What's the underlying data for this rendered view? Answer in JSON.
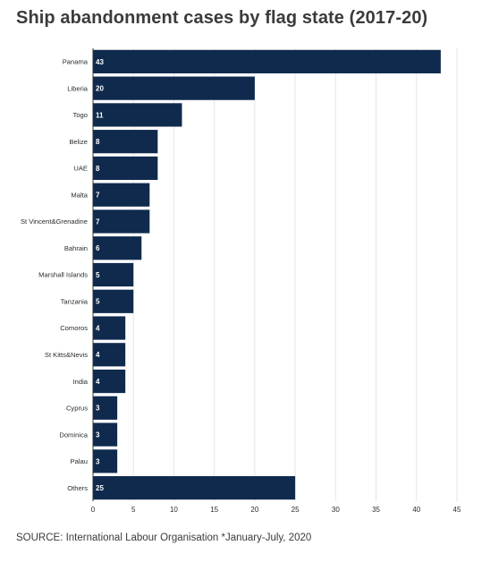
{
  "title": "Ship abandonment cases by flag state (2017-20)",
  "source": "SOURCE: International Labour Organisation *January-July, 2020",
  "colors": {
    "bar": "#0f2a4d",
    "grid": "#e6e6e6",
    "axis": "#333333"
  },
  "chart_data": {
    "type": "bar",
    "orientation": "horizontal",
    "title": "Ship abandonment cases by flag state (2017-20)",
    "xlabel": "",
    "ylabel": "",
    "xlim": [
      0,
      45
    ],
    "xticks": [
      0,
      5,
      10,
      15,
      20,
      25,
      30,
      35,
      40,
      45
    ],
    "grid": true,
    "categories": [
      "Panama",
      "Liberia",
      "Togo",
      "Belize",
      "UAE",
      "Malta",
      "St Vincent&Grenadine",
      "Bahrain",
      "Marshall Islands",
      "Tanzania",
      "Comoros",
      "St Kitts&Nevis",
      "India",
      "Cyprus",
      "Dominica",
      "Palau",
      "Others"
    ],
    "values": [
      43,
      20,
      11,
      8,
      8,
      7,
      7,
      6,
      5,
      5,
      4,
      4,
      4,
      3,
      3,
      3,
      25
    ]
  }
}
